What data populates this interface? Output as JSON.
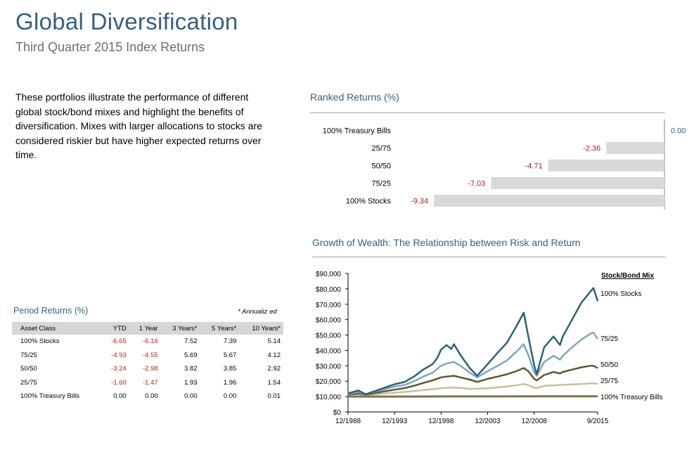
{
  "header": {
    "title": "Global Diversification",
    "subtitle": "Third Quarter 2015 Index Returns"
  },
  "description": "These portfolios illustrate the performance of different global stock/bond mixes and highlight the benefits of diversification. Mixes with larger allocations to stocks are considered riskier but have higher expected returns over time.",
  "period_returns": {
    "title": "Period Returns (%)",
    "note": "* Annualiz ed",
    "columns": [
      "Asset Class",
      "YTD",
      "1 Year",
      "3 Years*",
      "5 Years*",
      "10 Years*"
    ],
    "rows": [
      {
        "name": "100% Stocks",
        "values": [
          "-6.65",
          "-6.16",
          "7.52",
          "7.39",
          "5.14"
        ]
      },
      {
        "name": "75/25",
        "values": [
          "-4.93",
          "-4.55",
          "5.69",
          "5.67",
          "4.12"
        ]
      },
      {
        "name": "50/50",
        "values": [
          "-3.24",
          "-2.98",
          "3.82",
          "3.85",
          "2.92"
        ]
      },
      {
        "name": "25/75",
        "values": [
          "-1.60",
          "-1.47",
          "1.93",
          "1.96",
          "1.54"
        ]
      },
      {
        "name": "100% Treasury Bills",
        "values": [
          "0.00",
          "0.00",
          "0.00",
          "0.00",
          "0.01"
        ]
      }
    ]
  },
  "colors": {
    "accent": "#365f7c",
    "negative": "#b22222",
    "bar": "#d9d9d9",
    "stocks": "#2f5f78",
    "mix75": "#7ea7bc",
    "mix50": "#5e5535",
    "mix25": "#c6c09c",
    "tbills": "#7d7450"
  },
  "chart_data": [
    {
      "type": "bar",
      "orientation": "horizontal",
      "title": "Ranked Returns (%)",
      "categories": [
        "100% Treasury Bills",
        "25/75",
        "50/50",
        "75/25",
        "100% Stocks"
      ],
      "values": [
        0.0,
        -2.36,
        -4.71,
        -7.03,
        -9.34
      ],
      "labels": [
        "0.00",
        "-2.36",
        "-4.71",
        "-7.03",
        "-9.34"
      ],
      "xlim": [
        -10.2,
        0
      ]
    },
    {
      "type": "line",
      "title": "Growth of Wealth: The Relationship between Risk and Return",
      "legend_title": "Stock/Bond Mix",
      "x_ticks": [
        "12/1988",
        "12/1993",
        "12/1998",
        "12/2003",
        "12/2008",
        "9/2015"
      ],
      "x_tick_years": [
        1988.92,
        1993.92,
        1998.92,
        2003.92,
        2008.92,
        2015.75
      ],
      "xlim": [
        1988.92,
        2015.75
      ],
      "y_ticks": [
        "$0",
        "$10,000",
        "$20,000",
        "$30,000",
        "$40,000",
        "$50,000",
        "$60,000",
        "$70,000",
        "$80,000",
        "$90,000"
      ],
      "ylim": [
        0,
        90000
      ],
      "series": [
        {
          "name": "100% Stocks",
          "color_key": "stocks",
          "x": [
            1988.92,
            1990,
            1990.8,
            1992,
            1993.92,
            1995,
            1996,
            1997,
            1998,
            1998.5,
            1998.92,
            1999.5,
            2000,
            2000.3,
            2001,
            2002,
            2002.8,
            2003.92,
            2005,
            2006,
            2007,
            2007.8,
            2008.3,
            2008.92,
            2009.2,
            2010,
            2011,
            2011.7,
            2012,
            2013,
            2014,
            2015,
            2015.3,
            2015.75
          ],
          "y": [
            12000,
            14000,
            11500,
            14000,
            18000,
            19500,
            23000,
            27500,
            31000,
            35000,
            40500,
            43500,
            41000,
            44000,
            37000,
            28500,
            23500,
            31000,
            38500,
            45000,
            55500,
            64500,
            49000,
            30500,
            24500,
            42000,
            49000,
            43500,
            49000,
            60000,
            71000,
            78500,
            80500,
            72000
          ]
        },
        {
          "name": "75/25",
          "color_key": "mix75",
          "x": [
            1988.92,
            1990,
            1990.8,
            1992,
            1993.92,
            1995,
            1996,
            1997,
            1998,
            1998.92,
            1999.5,
            2000.3,
            2001,
            2002,
            2002.8,
            2003.92,
            2005,
            2006,
            2007,
            2007.8,
            2008.3,
            2008.92,
            2009.2,
            2010,
            2011,
            2011.7,
            2012,
            2013,
            2014,
            2015,
            2015.3,
            2015.75
          ],
          "y": [
            11500,
            13000,
            11500,
            13500,
            16500,
            17500,
            20000,
            23000,
            25500,
            30000,
            31500,
            32500,
            30000,
            25500,
            22500,
            26500,
            30000,
            33500,
            39000,
            44000,
            37000,
            26000,
            23500,
            32500,
            36500,
            34000,
            36500,
            42000,
            47000,
            51000,
            51500,
            47500
          ]
        },
        {
          "name": "50/50",
          "color_key": "mix50",
          "x": [
            1988.92,
            1990,
            1990.8,
            1992,
            1993.92,
            1995,
            1996,
            1997,
            1998,
            1998.92,
            1999.5,
            2000.3,
            2001,
            2002,
            2002.8,
            2003.92,
            2005,
            2006,
            2007,
            2007.8,
            2008.3,
            2008.92,
            2009.2,
            2010,
            2011,
            2011.7,
            2012,
            2013,
            2014,
            2015,
            2015.3,
            2015.75
          ],
          "y": [
            11000,
            12000,
            11200,
            12500,
            14500,
            15500,
            17000,
            18800,
            20500,
            22500,
            23000,
            23500,
            22500,
            21000,
            19500,
            21500,
            23000,
            24500,
            26500,
            28500,
            26500,
            21500,
            20500,
            24000,
            26000,
            25000,
            26000,
            27500,
            29000,
            30000,
            30000,
            28500
          ]
        },
        {
          "name": "25/75",
          "color_key": "mix25",
          "x": [
            1988.92,
            1990,
            1990.8,
            1992,
            1993.92,
            1995,
            1996,
            1997,
            1998,
            1998.92,
            2000,
            2001,
            2002,
            2003.92,
            2005,
            2006,
            2007,
            2007.8,
            2008.5,
            2009,
            2009.5,
            2010,
            2011,
            2012,
            2013,
            2014,
            2015,
            2015.75
          ],
          "y": [
            10800,
            11200,
            11000,
            11600,
            12500,
            13000,
            13600,
            14200,
            14800,
            15500,
            15800,
            15700,
            15000,
            15400,
            16000,
            16600,
            17300,
            18200,
            17000,
            15500,
            16000,
            17000,
            17300,
            17600,
            17900,
            18200,
            18600,
            18300
          ]
        },
        {
          "name": "100% Treasury Bills",
          "color_key": "tbills",
          "x": [
            1988.92,
            1995,
            2000,
            2005,
            2010,
            2015.75
          ],
          "y": [
            10000,
            10000,
            10100,
            10100,
            10200,
            10200
          ]
        }
      ]
    }
  ]
}
